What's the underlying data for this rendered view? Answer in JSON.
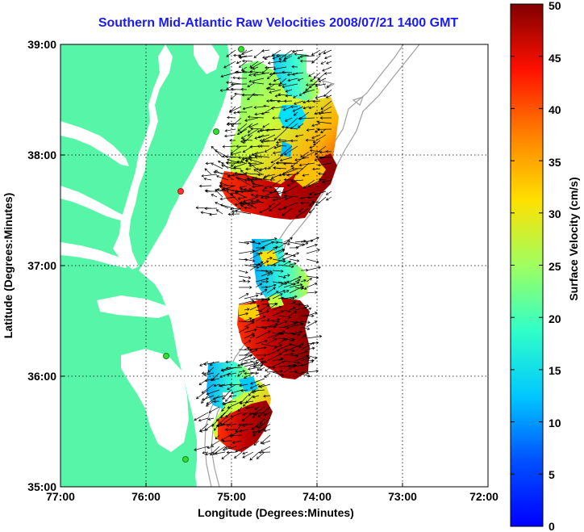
{
  "title": "Southern Mid-Atlantic Raw Velocities 2008/07/21 1400 GMT",
  "xaxis": {
    "label": "Longitude (Degrees:Minutes)",
    "ticks": [
      "77:00",
      "76:00",
      "75:00",
      "74:00",
      "73:00",
      "72:00"
    ]
  },
  "yaxis": {
    "label": "Latitude (Degrees:Minutes)",
    "ticks": [
      "39:00",
      "38:00",
      "37:00",
      "36:00",
      "35:00"
    ]
  },
  "colorbar": {
    "label": "Surface Velocity (cm/s)",
    "ticks": [
      "50",
      "45",
      "40",
      "35",
      "30",
      "25",
      "20",
      "15",
      "10",
      "5",
      "0"
    ],
    "min": 0,
    "max": 50,
    "colormap": "jet"
  },
  "colors": {
    "land": "#56f5a8",
    "title": "#1a1aff",
    "station_marker": "#33dd33",
    "station_marker_active": "#ff3333"
  }
}
